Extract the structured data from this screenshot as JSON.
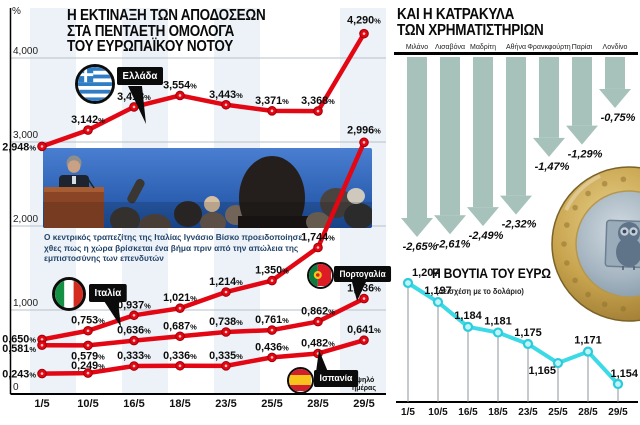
{
  "bonds": {
    "title_lines": [
      "Η ΕΚΤΙΝΑΞΗ ΤΩΝ ΑΠΟΔΟΣΕΩΝ",
      "ΣΤΑ ΠΕΝΤΑΕΤΗ ΟΜΟΛΟΓΑ",
      "ΤΟΥ ΕΥΡΩΠΑΪΚΟΥ ΝΟΤΟΥ"
    ],
    "unit": "%",
    "note_lines": [
      "Υψηλό",
      "ημέρας"
    ],
    "photo_caption": "Ο κεντρικός τραπεζίτης της Ιταλίας Ιγνάσιο Βίσκο προειδοποίησε χθες πως η χώρα βρίσκεται ένα βήμα πριν από την απώλεια της εμπιστοσύνης των επενδυτών"
  },
  "markets": {
    "title_lines": [
      "ΚΑΙ Η ΚΑΤΡΑΚΥΛΑ",
      "ΤΩΝ ΧΡΗΜΑΤΙΣΤΗΡΙΩΝ"
    ]
  },
  "euro": {
    "title": "Η ΒΟΥΤΙΑ ΤΟΥ ΕΥΡΩ",
    "subtitle": "(σε σχέση με το δολάριο)"
  },
  "colors": {
    "bond_line_red": "#e30613",
    "arrow_teal": "#a7c2bb",
    "euro_cyan": "#3cd9e6"
  },
  "chart_data": [
    {
      "type": "line",
      "title": "Η ΕΚΤΙΝΑΞΗ ΤΩΝ ΑΠΟΔΟΣΕΩΝ ΣΤΑ ΠΕΝΤΑΕΤΗ ΟΜΟΛΟΓΑ ΤΟΥ ΕΥΡΩΠΑΪΚΟΥ ΝΟΤΟΥ",
      "ylabel": "%",
      "ylim": [
        0,
        4.5
      ],
      "grid": true,
      "ytick_values": [
        4,
        3,
        2,
        1,
        0
      ],
      "ytick_labels": [
        "4,000",
        "3,000",
        "2,000",
        "1,000",
        "0"
      ],
      "x": [
        "1/5",
        "10/5",
        "16/5",
        "18/5",
        "23/5",
        "25/5",
        "28/5",
        "29/5"
      ],
      "series": [
        {
          "name": "Ελλάδα",
          "values": [
            2.948,
            3.142,
            3.418,
            3.554,
            3.443,
            3.371,
            3.368,
            4.29
          ]
        },
        {
          "name": "Ιταλία",
          "values": [
            0.65,
            0.753,
            0.937,
            1.021,
            1.214,
            1.35,
            1.744,
            2.996
          ]
        },
        {
          "name": "Πορτογαλία",
          "values": [
            0.581,
            0.579,
            0.636,
            0.687,
            0.738,
            0.761,
            0.862,
            1.136
          ]
        },
        {
          "name": "Ισπανία",
          "values": [
            0.243,
            0.249,
            0.333,
            0.336,
            0.335,
            0.436,
            0.482,
            0.641
          ]
        }
      ],
      "annotation": "Υψηλό ημέρας"
    },
    {
      "type": "bar",
      "title": "ΚΑΙ Η ΚΑΤΡΑΚΥΛΑ ΤΩΝ ΧΡΗΜΑΤΙΣΤΗΡΙΩΝ",
      "categories": [
        "Μιλάνο",
        "Λισαβόνα",
        "Μαδρίτη",
        "Αθήνα",
        "Φρανκφούρτη",
        "Παρίσι",
        "Λονδίνο"
      ],
      "values": [
        -2.65,
        -2.61,
        -2.49,
        -2.32,
        -1.47,
        -1.29,
        -0.75
      ],
      "unit": "%"
    },
    {
      "type": "line",
      "title": "Η ΒΟΥΤΙΑ ΤΟΥ ΕΥΡΩ",
      "subtitle": "(σε σχέση με το δολάριο)",
      "x": [
        "1/5",
        "10/5",
        "16/5",
        "18/5",
        "23/5",
        "25/5",
        "28/5",
        "29/5"
      ],
      "values": [
        1.207,
        1.197,
        1.184,
        1.181,
        1.175,
        1.165,
        1.171,
        1.154
      ],
      "ylim": [
        1.15,
        1.21
      ]
    }
  ]
}
